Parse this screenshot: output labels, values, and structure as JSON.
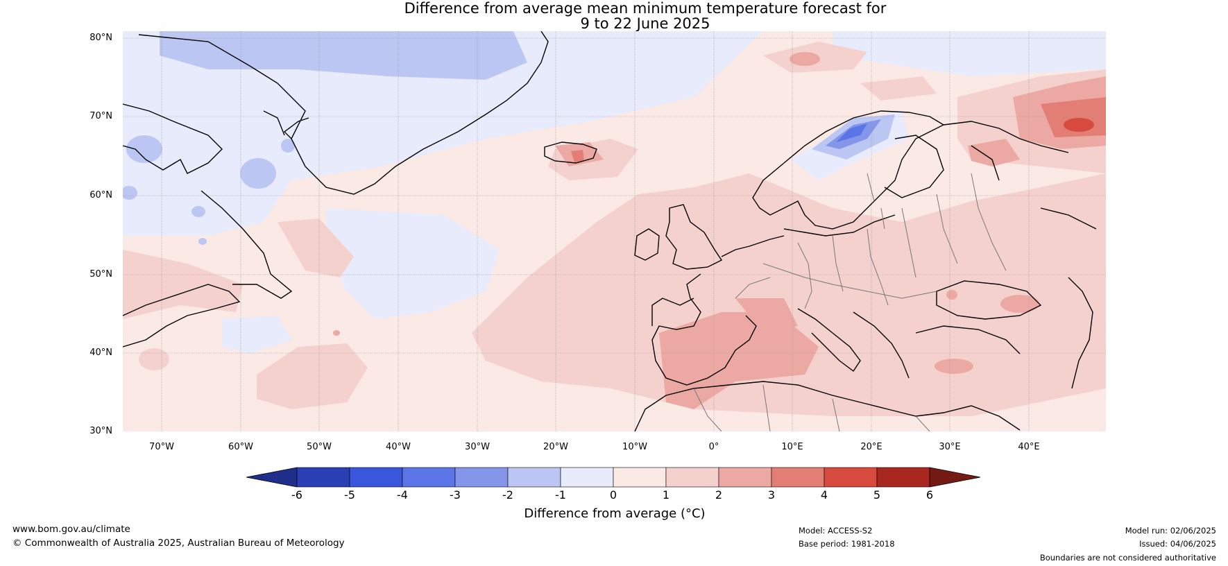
{
  "title_line1": "Difference from average mean minimum temperature forecast for",
  "title_line2": "9 to 22 June 2025",
  "lat_labels": [
    "80°N",
    "70°N",
    "60°N",
    "50°N",
    "40°N",
    "30°N"
  ],
  "lon_labels": [
    "70°W",
    "60°W",
    "50°W",
    "40°W",
    "30°W",
    "20°W",
    "10°W",
    "0°",
    "10°E",
    "20°E",
    "30°E",
    "40°E"
  ],
  "colorbar": {
    "ticks": [
      "-6",
      "-5",
      "-4",
      "-3",
      "-2",
      "-1",
      "0",
      "1",
      "2",
      "3",
      "4",
      "5",
      "6"
    ],
    "colors": [
      "#1f2f8a",
      "#2b3fb5",
      "#3a56dd",
      "#5c75e6",
      "#8396ea",
      "#bcc6f3",
      "#e8ebfc",
      "#fbe9e6",
      "#f4d1cd",
      "#eca9a3",
      "#e37e74",
      "#d74b3f",
      "#a82820",
      "#761a16"
    ],
    "label": "Difference from average (°C)"
  },
  "footer": {
    "url": "www.bom.gov.au/climate",
    "copyright": "© Commonwealth of Australia 2025, Australian Bureau of Meteorology",
    "model": "Model: ACCESS-S2",
    "base_period": "Base period: 1981-2018",
    "model_run": "Model run: 02/06/2025",
    "issued": "Issued: 04/06/2025",
    "disclaimer": "Boundaries are not considered authoritative"
  }
}
